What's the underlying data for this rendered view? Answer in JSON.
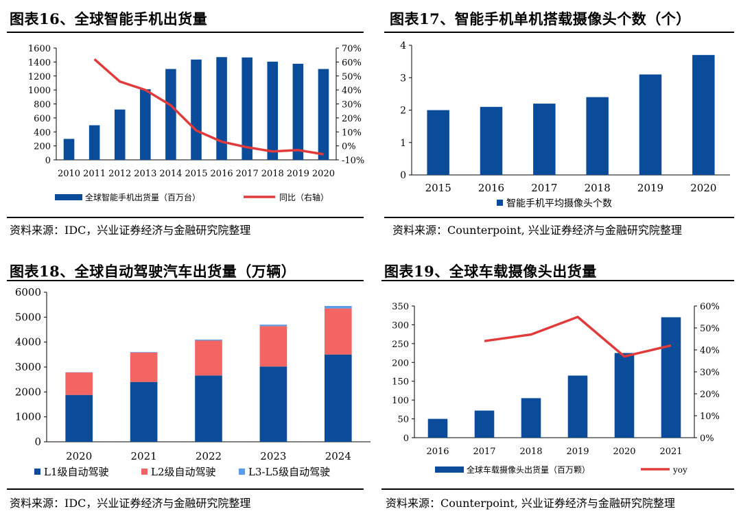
{
  "colors": {
    "navy": "#0B4C9A",
    "red": "#E03A3A",
    "pink": "#F26563",
    "light_blue": "#5B9BE8"
  },
  "panels": [
    {
      "title": "图表16、全球智能手机出货量",
      "source": "资料来源：IDC，兴业证券经济与金融研究院整理"
    },
    {
      "title": "图表17、智能手机单机搭载摄像头个数（个）",
      "source": "资料来源：Counterpoint, 兴业证券经济与金融研究院整理"
    },
    {
      "title": "图表18、全球自动驾驶汽车出货量（万辆）",
      "source": "资料来源：IDC，兴业证券经济与金融研究院整理"
    },
    {
      "title": "图表19、全球车载摄像头出货量",
      "source": "资料来源：Counterpoint, 兴业证券经济与金融研究院整理"
    }
  ],
  "chart_data": [
    {
      "type": "bar",
      "categories": [
        "2010",
        "2011",
        "2012",
        "2013",
        "2014",
        "2015",
        "2016",
        "2017",
        "2018",
        "2019",
        "2020"
      ],
      "series": [
        {
          "name": "全球智能手机出货量（百万台）",
          "type": "bar",
          "axis": "left",
          "values": [
            300,
            495,
            720,
            1010,
            1300,
            1435,
            1470,
            1465,
            1405,
            1375,
            1300
          ]
        },
        {
          "name": "同比（右轴）",
          "type": "line",
          "axis": "right",
          "values": [
            null,
            62,
            46,
            40,
            29,
            11,
            3,
            -1,
            -4,
            -3,
            -6
          ]
        }
      ],
      "ylim": [
        0,
        1600
      ],
      "yticks": [
        "0",
        "200",
        "400",
        "600",
        "800",
        "1000",
        "1200",
        "1400",
        "1600"
      ],
      "y2lim": [
        -10,
        70
      ],
      "y2ticks": [
        "-10%",
        "0%",
        "10%",
        "20%",
        "30%",
        "40%",
        "50%",
        "60%",
        "70%"
      ],
      "legend": "bottom"
    },
    {
      "type": "bar",
      "categories": [
        "2015",
        "2016",
        "2017",
        "2018",
        "2019",
        "2020"
      ],
      "series": [
        {
          "name": "智能手机平均摄像头个数",
          "values": [
            2.0,
            2.1,
            2.2,
            2.4,
            3.1,
            3.7
          ]
        }
      ],
      "ylim": [
        0,
        4
      ],
      "yticks": [
        "0",
        "1",
        "2",
        "3",
        "4"
      ],
      "legend": "bottom"
    },
    {
      "type": "bar",
      "stacked": true,
      "categories": [
        "2020",
        "2021",
        "2022",
        "2023",
        "2024"
      ],
      "series": [
        {
          "name": "L1级自动驾驶",
          "values": [
            1880,
            2400,
            2660,
            3020,
            3500
          ]
        },
        {
          "name": "L2级自动驾驶",
          "values": [
            900,
            1180,
            1400,
            1620,
            1850
          ]
        },
        {
          "name": "L3-L5级自动驾驶",
          "values": [
            10,
            20,
            40,
            60,
            100
          ]
        }
      ],
      "ylim": [
        0,
        6000
      ],
      "yticks": [
        "0",
        "1000",
        "2000",
        "3000",
        "4000",
        "5000",
        "6000"
      ],
      "legend": "bottom"
    },
    {
      "type": "bar",
      "categories": [
        "2016",
        "2017",
        "2018",
        "2019",
        "2020",
        "2021"
      ],
      "series": [
        {
          "name": "全球车载摄像头出货量（百万颗）",
          "type": "bar",
          "axis": "left",
          "values": [
            50,
            72,
            105,
            165,
            225,
            320
          ]
        },
        {
          "name": "yoy",
          "type": "line",
          "axis": "right",
          "values": [
            null,
            44,
            47,
            55,
            37,
            42
          ]
        }
      ],
      "ylim": [
        0,
        350
      ],
      "yticks": [
        "0",
        "50",
        "100",
        "150",
        "200",
        "250",
        "300",
        "350"
      ],
      "y2lim": [
        0,
        60
      ],
      "y2ticks": [
        "0%",
        "10%",
        "20%",
        "30%",
        "40%",
        "50%",
        "60%"
      ],
      "legend": "bottom"
    }
  ]
}
